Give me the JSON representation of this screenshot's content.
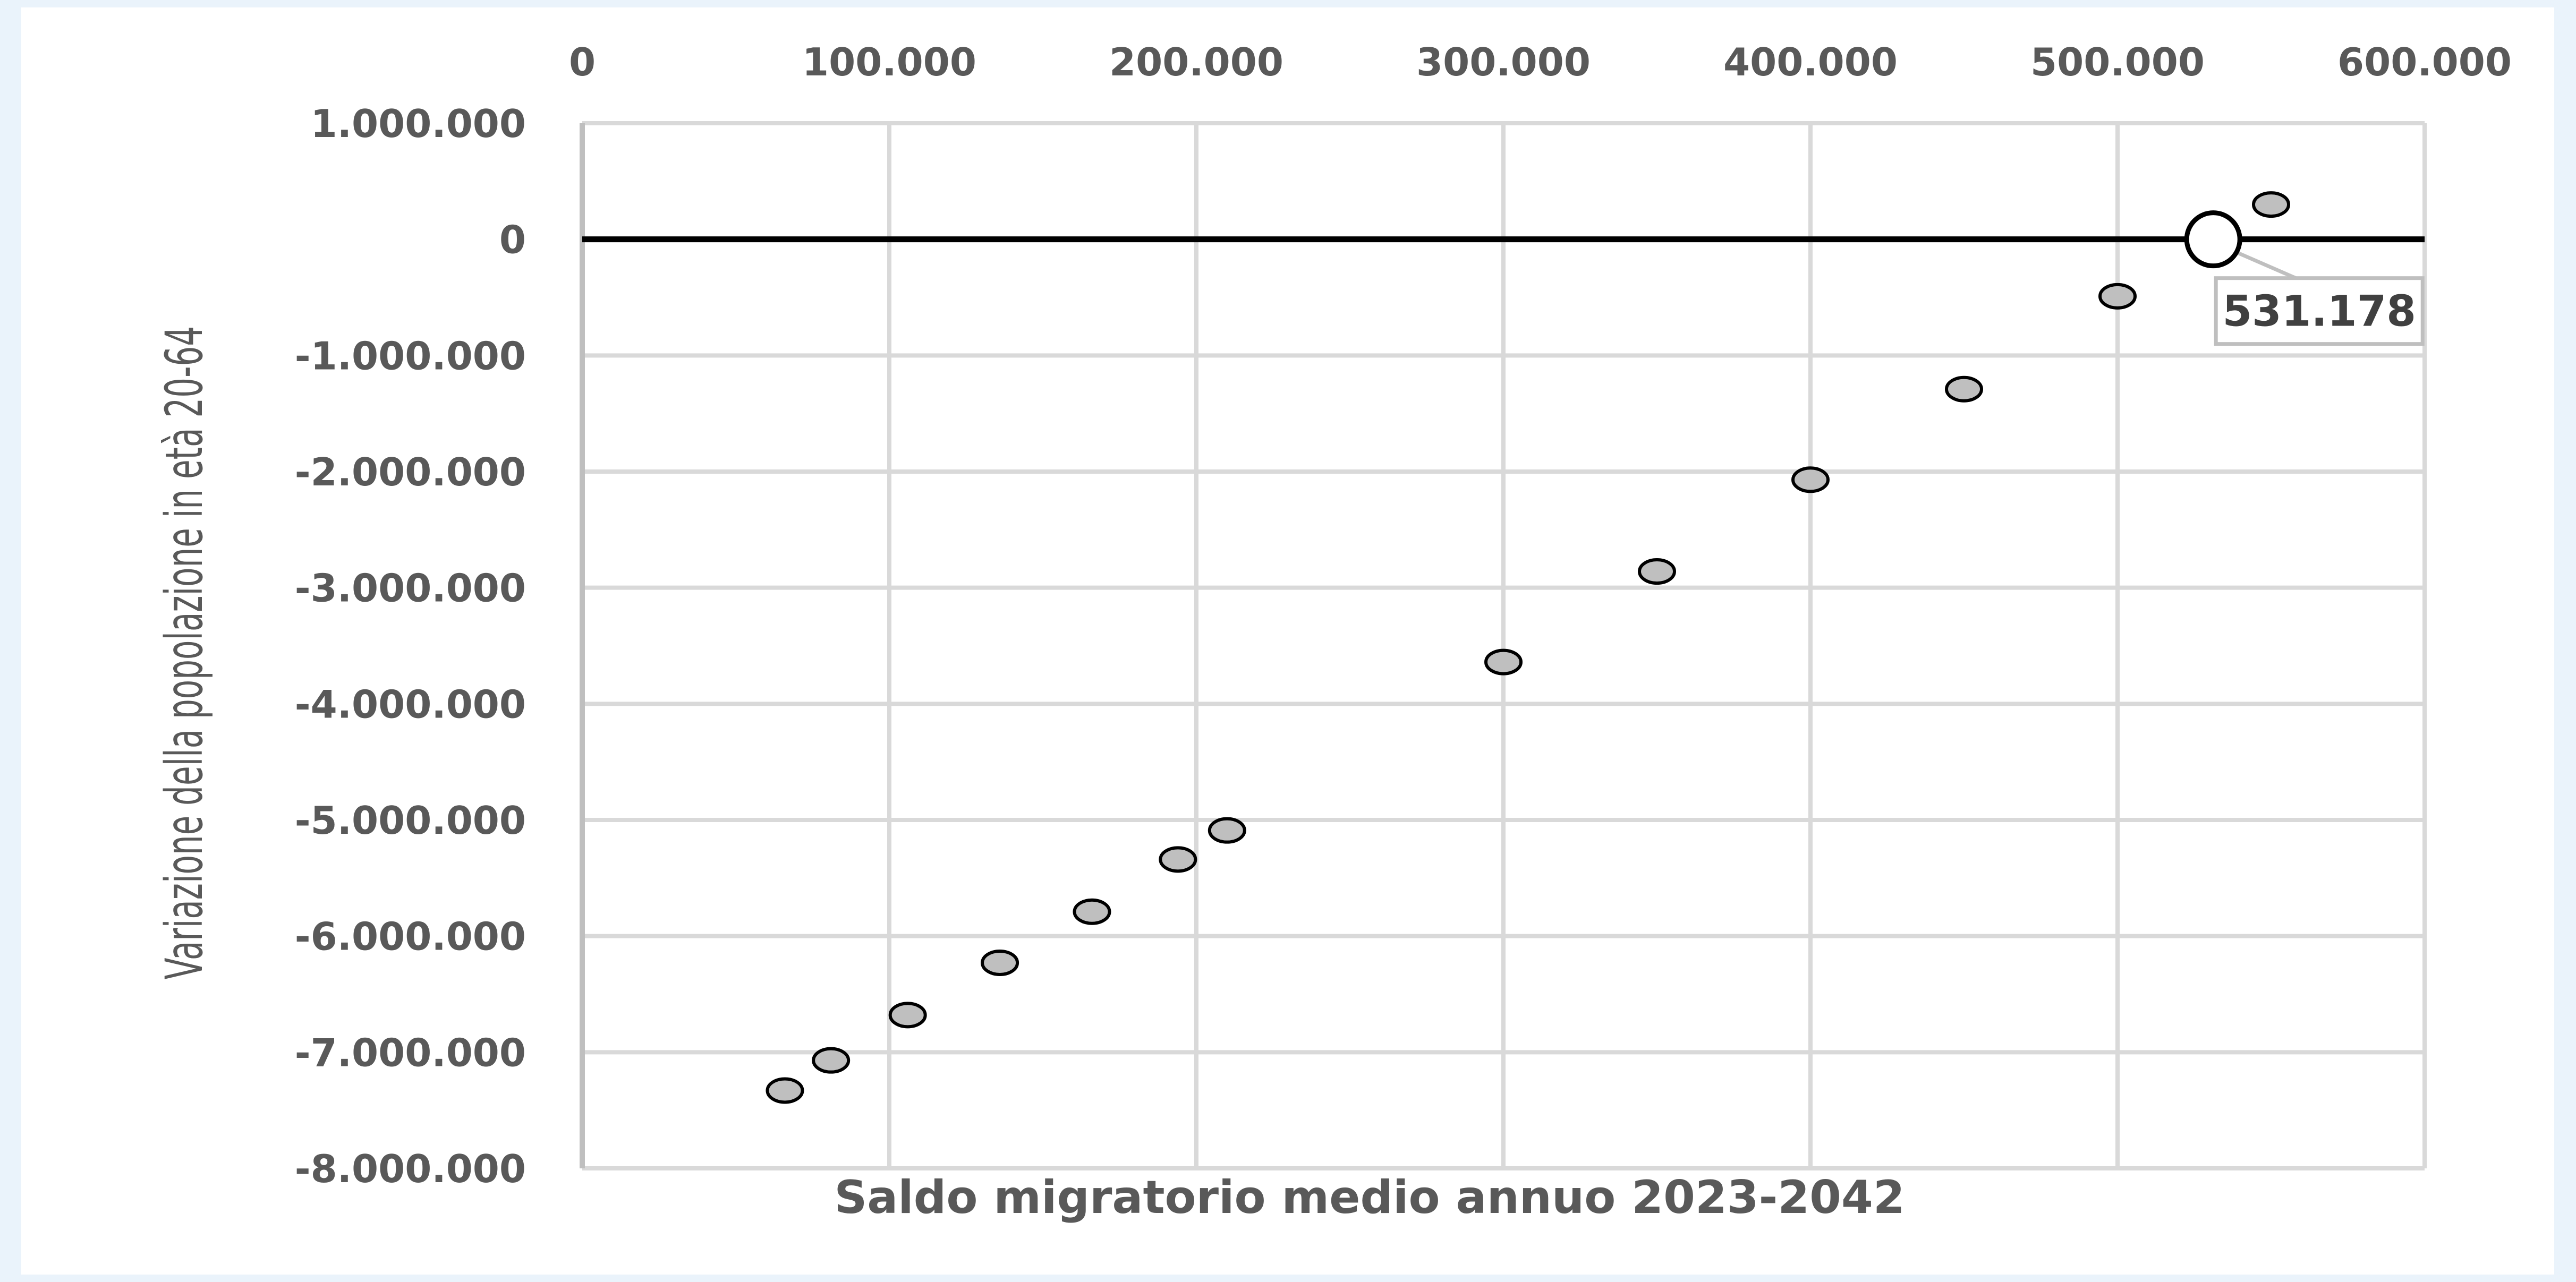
{
  "chart_data": {
    "type": "scatter",
    "title": "",
    "xlabel": "Saldo migratorio  medio annuo 2023-2042",
    "ylabel": "Variazione della popolazione in età 20-64",
    "xlim": [
      0,
      600000
    ],
    "ylim": [
      -8000000,
      1000000
    ],
    "x_ticks": [
      0,
      100000,
      200000,
      300000,
      400000,
      500000,
      600000
    ],
    "x_tick_labels": [
      "0",
      "100.000",
      "200.000",
      "300.000",
      "400.000",
      "500.000",
      "600.000"
    ],
    "y_ticks": [
      1000000,
      0,
      -1000000,
      -2000000,
      -3000000,
      -4000000,
      -5000000,
      -6000000,
      -7000000,
      -8000000
    ],
    "y_tick_labels": [
      "1.000.000",
      "0",
      "-1.000.000",
      "-2.000.000",
      "-3.000.000",
      "-4.000.000",
      "-5.000.000",
      "-6.000.000",
      "-7.000.000",
      "-8.000.000"
    ],
    "x_axis_position": "top",
    "grid": true,
    "zero_line": true,
    "points": [
      {
        "x": 66000,
        "y": -7330000
      },
      {
        "x": 81000,
        "y": -7070000
      },
      {
        "x": 106000,
        "y": -6680000
      },
      {
        "x": 136000,
        "y": -6230000
      },
      {
        "x": 166000,
        "y": -5790000
      },
      {
        "x": 194000,
        "y": -5340000
      },
      {
        "x": 210000,
        "y": -5090000
      },
      {
        "x": 300000,
        "y": -3640000
      },
      {
        "x": 350000,
        "y": -2860000
      },
      {
        "x": 400000,
        "y": -2070000
      },
      {
        "x": 450000,
        "y": -1290000
      },
      {
        "x": 500000,
        "y": -490000
      },
      {
        "x": 550000,
        "y": 300000
      }
    ],
    "highlight": {
      "x": 531178,
      "y": 0,
      "label": "531.178"
    },
    "colors": {
      "point_fill": "#bfbfbf",
      "point_stroke": "#000000",
      "grid": "#d9d9d9",
      "zero_line": "#000000",
      "text": "#595959"
    }
  }
}
